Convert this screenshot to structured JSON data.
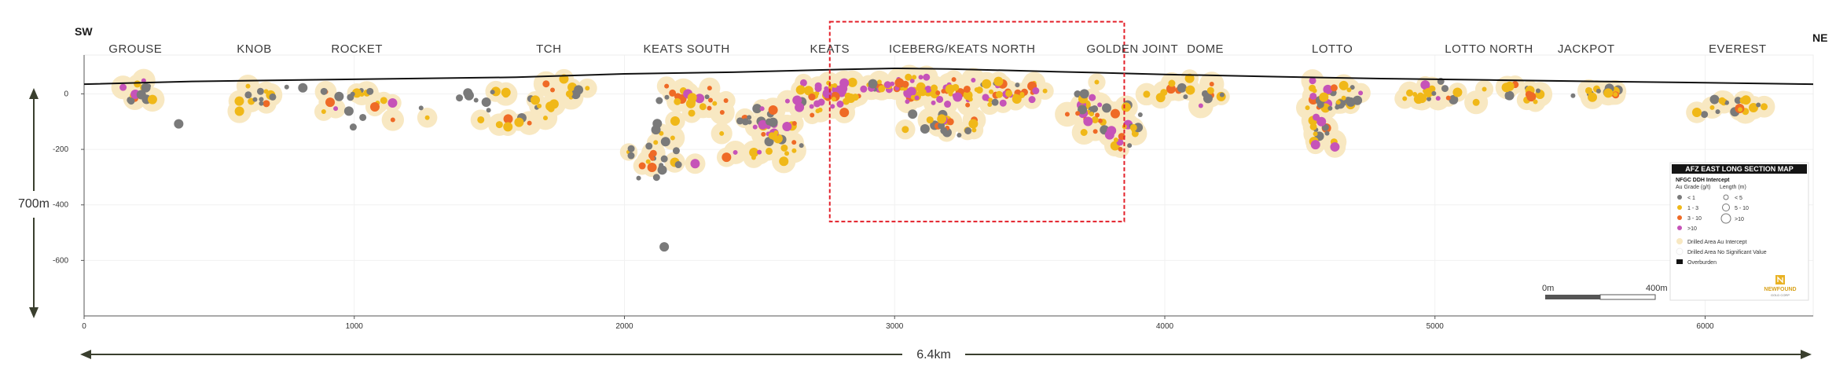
{
  "chart_data": {
    "type": "scatter",
    "title": "AFZ EAST LONG SECTION MAP",
    "orientation": {
      "left": "SW",
      "right": "NE"
    },
    "x_ticks": [
      "0",
      "1000",
      "2000",
      "3000",
      "4000",
      "5000",
      "6000"
    ],
    "y_ticks": [
      "0",
      "-200",
      "-400",
      "-600"
    ],
    "xlim": [
      0,
      6400
    ],
    "ylim": [
      -800,
      140
    ],
    "vertical_scale_label": "700m",
    "horizontal_scale_label": "6.4km",
    "zones": [
      {
        "name": "GROUSE",
        "x": 190
      },
      {
        "name": "KNOB",
        "x": 630
      },
      {
        "name": "ROCKET",
        "x": 1010
      },
      {
        "name": "TCH",
        "x": 1720
      },
      {
        "name": "KEATS SOUTH",
        "x": 2230
      },
      {
        "name": "KEATS",
        "x": 2760
      },
      {
        "name": "ICEBERG/KEATS NORTH",
        "x": 3250
      },
      {
        "name": "GOLDEN JOINT",
        "x": 3880
      },
      {
        "name": "DOME",
        "x": 4150
      },
      {
        "name": "LOTTO",
        "x": 4620
      },
      {
        "name": "LOTTO NORTH",
        "x": 5200
      },
      {
        "name": "JACKPOT",
        "x": 5560
      },
      {
        "name": "EVEREST",
        "x": 6120
      }
    ],
    "highlight_box": {
      "x_range": [
        2760,
        3850
      ],
      "y_range": [
        -460,
        260
      ]
    },
    "overburden_profile": {
      "x": [
        0,
        400,
        800,
        1200,
        1600,
        2000,
        2400,
        2800,
        3000,
        3200,
        3600,
        4000,
        4400,
        4800,
        5200,
        5600,
        6000,
        6400
      ],
      "y": [
        35,
        45,
        50,
        55,
        60,
        72,
        78,
        88,
        92,
        90,
        80,
        70,
        62,
        55,
        50,
        45,
        40,
        35
      ]
    },
    "grade_classes": [
      {
        "label": "< 1",
        "color": "#7a7a7a"
      },
      {
        "label": "1 - 3",
        "color": "#f0b818"
      },
      {
        "label": "3 - 10",
        "color": "#ef6a26"
      },
      {
        "label": ">10",
        "color": "#c653b8"
      }
    ],
    "length_classes": [
      {
        "label": "< 5",
        "size": 3
      },
      {
        "label": "5 - 10",
        "size": 4.5
      },
      {
        "label": ">10",
        "size": 6
      }
    ],
    "halo_color": "#f8e8c2",
    "clusters": [
      {
        "x": 190,
        "y": 5,
        "sx": 90,
        "sy": 45,
        "n": 14,
        "g": [
          0.3,
          0.5,
          0.15,
          0.05
        ]
      },
      {
        "x": 350,
        "y": -110,
        "sx": 20,
        "sy": 10,
        "n": 1,
        "g": [
          1,
          0,
          0,
          0
        ]
      },
      {
        "x": 650,
        "y": 0,
        "sx": 130,
        "sy": 50,
        "n": 14,
        "g": [
          0.5,
          0.4,
          0.1,
          0
        ]
      },
      {
        "x": 1000,
        "y": -20,
        "sx": 130,
        "sy": 70,
        "n": 22,
        "g": [
          0.4,
          0.4,
          0.15,
          0.05
        ]
      },
      {
        "x": 1400,
        "y": -40,
        "sx": 160,
        "sy": 70,
        "n": 14,
        "g": [
          0.6,
          0.35,
          0.05,
          0
        ]
      },
      {
        "x": 1650,
        "y": -60,
        "sx": 120,
        "sy": 90,
        "n": 16,
        "g": [
          0.35,
          0.45,
          0.2,
          0
        ]
      },
      {
        "x": 1800,
        "y": 20,
        "sx": 80,
        "sy": 40,
        "n": 8,
        "g": [
          0.4,
          0.5,
          0.1,
          0
        ]
      },
      {
        "x": 2100,
        "y": -220,
        "sx": 120,
        "sy": 90,
        "n": 28,
        "g": [
          0.25,
          0.45,
          0.25,
          0.05
        ]
      },
      {
        "x": 2250,
        "y": -30,
        "sx": 140,
        "sy": 70,
        "n": 22,
        "g": [
          0.25,
          0.4,
          0.25,
          0.1
        ]
      },
      {
        "x": 2150,
        "y": -550,
        "sx": 5,
        "sy": 5,
        "n": 1,
        "g": [
          1,
          0,
          0,
          0
        ]
      },
      {
        "x": 2520,
        "y": -140,
        "sx": 160,
        "sy": 110,
        "n": 45,
        "g": [
          0.2,
          0.35,
          0.2,
          0.25
        ]
      },
      {
        "x": 2740,
        "y": -10,
        "sx": 140,
        "sy": 70,
        "n": 40,
        "g": [
          0.15,
          0.3,
          0.2,
          0.35
        ]
      },
      {
        "x": 3050,
        "y": 20,
        "sx": 190,
        "sy": 40,
        "n": 55,
        "g": [
          0.15,
          0.35,
          0.2,
          0.3
        ]
      },
      {
        "x": 3350,
        "y": 10,
        "sx": 200,
        "sy": 45,
        "n": 55,
        "g": [
          0.15,
          0.35,
          0.2,
          0.3
        ]
      },
      {
        "x": 3200,
        "y": -110,
        "sx": 180,
        "sy": 50,
        "n": 22,
        "g": [
          0.3,
          0.5,
          0.15,
          0.05
        ]
      },
      {
        "x": 3720,
        "y": -80,
        "sx": 90,
        "sy": 100,
        "n": 28,
        "g": [
          0.3,
          0.35,
          0.2,
          0.15
        ]
      },
      {
        "x": 3850,
        "y": -120,
        "sx": 60,
        "sy": 100,
        "n": 20,
        "g": [
          0.3,
          0.35,
          0.2,
          0.15
        ]
      },
      {
        "x": 4100,
        "y": 0,
        "sx": 140,
        "sy": 60,
        "n": 20,
        "g": [
          0.35,
          0.4,
          0.2,
          0.05
        ]
      },
      {
        "x": 4580,
        "y": -80,
        "sx": 60,
        "sy": 110,
        "n": 32,
        "g": [
          0.2,
          0.35,
          0.2,
          0.25
        ]
      },
      {
        "x": 4680,
        "y": 0,
        "sx": 90,
        "sy": 40,
        "n": 16,
        "g": [
          0.3,
          0.4,
          0.2,
          0.1
        ]
      },
      {
        "x": 5000,
        "y": 0,
        "sx": 160,
        "sy": 45,
        "n": 22,
        "g": [
          0.4,
          0.35,
          0.15,
          0.1
        ]
      },
      {
        "x": 5320,
        "y": 0,
        "sx": 130,
        "sy": 40,
        "n": 14,
        "g": [
          0.4,
          0.4,
          0.15,
          0.05
        ]
      },
      {
        "x": 5600,
        "y": 15,
        "sx": 120,
        "sy": 30,
        "n": 14,
        "g": [
          0.4,
          0.4,
          0.15,
          0.05
        ]
      },
      {
        "x": 6100,
        "y": -40,
        "sx": 150,
        "sy": 40,
        "n": 18,
        "g": [
          0.4,
          0.4,
          0.15,
          0.05
        ]
      }
    ]
  },
  "legend": {
    "title": "AFZ EAST LONG SECTION MAP",
    "subtitle": "NFGC DDH Intercept",
    "grade_header": "Au Grade (g/t)",
    "length_header": "Length (m)",
    "grade_items": [
      "< 1",
      "1 - 3",
      "3 - 10",
      ">10"
    ],
    "length_items": [
      "< 5",
      "5 - 10",
      ">10"
    ],
    "area_intercept": "Drilled Area Au Intercept",
    "area_nsv": "Drilled Area No Significant Value",
    "overburden": "Overburden",
    "scale_start": "0m",
    "scale_end": "400m",
    "logo_line1": "NEWFOUND",
    "logo_line2": "GOLD CORP"
  }
}
